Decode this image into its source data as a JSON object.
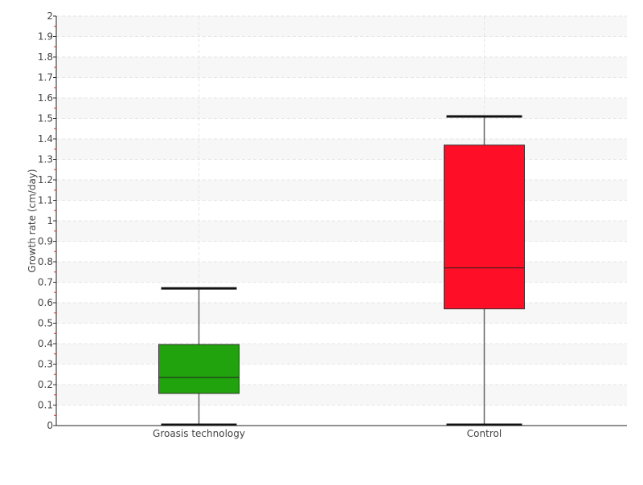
{
  "chart_data": {
    "type": "boxplot",
    "title": "",
    "xlabel": "",
    "ylabel": "Growth rate (cm/day)",
    "ylim": [
      0,
      2
    ],
    "yticks": [
      "0",
      "0.1",
      "0.2",
      "0.3",
      "0.4",
      "0.5",
      "0.6",
      "0.7",
      "0.8",
      "0.9",
      "1",
      "1.1",
      "1.2",
      "1.3",
      "1.4",
      "1.5",
      "1.6",
      "1.7",
      "1.8",
      "1.9",
      "2"
    ],
    "grid": true,
    "categories": [
      "Groasis technology",
      "Control"
    ],
    "boxes": [
      {
        "min": 0,
        "q1": 0.157,
        "median": 0.235,
        "q3": 0.396,
        "max": 0.67,
        "color": "#21a30d"
      },
      {
        "min": 0,
        "q1": 0.57,
        "median": 0.77,
        "q3": 1.37,
        "max": 1.51,
        "color": "#ff0e27"
      }
    ]
  }
}
